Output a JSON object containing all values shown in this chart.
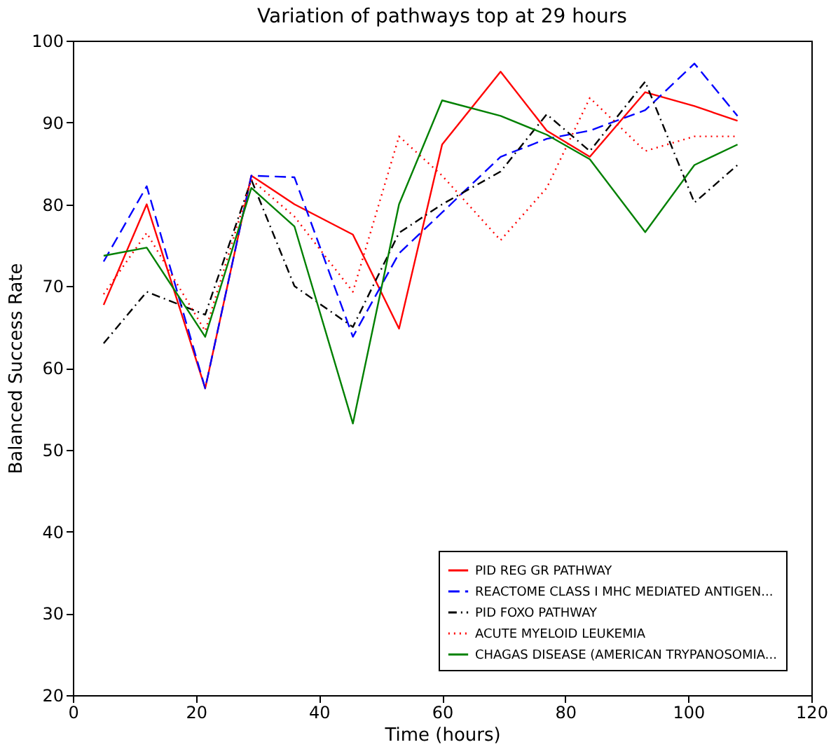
{
  "chart_data": {
    "type": "line",
    "title": "Variation of pathways top at 29 hours",
    "xlabel": "Time (hours)",
    "ylabel": "Balanced Success Rate",
    "x": [
      5,
      12,
      21.5,
      29,
      36,
      45.5,
      53,
      60,
      69.5,
      77,
      84,
      93,
      101,
      108
    ],
    "series": [
      {
        "name": "PID REG GR PATHWAY",
        "color": "#ff0000",
        "line_style": "solid",
        "values": [
          67.7,
          80,
          57.5,
          83.5,
          80,
          76.3,
          64.8,
          87.3,
          96.2,
          89,
          85.8,
          93.7,
          92,
          90.2
        ]
      },
      {
        "name": "REACTOME CLASS I MHC MEDIATED ANTIGEN...",
        "color": "#0000ff",
        "line_style": "dashed",
        "values": [
          73,
          82.2,
          57.5,
          83.5,
          83.3,
          63.8,
          74,
          79,
          85.8,
          88,
          89,
          91.5,
          97.2,
          90.8
        ]
      },
      {
        "name": "PID FOXO PATHWAY",
        "color": "#000000",
        "line_style": "dashdot",
        "values": [
          63,
          69.3,
          66.5,
          83,
          70,
          65,
          76.5,
          80,
          84,
          91,
          86.5,
          95,
          80.2,
          84.8
        ]
      },
      {
        "name": "ACUTE MYELOID LEUKEMIA",
        "color": "#ff0000",
        "line_style": "dotted",
        "values": [
          69,
          76.5,
          64.5,
          83,
          78.5,
          69.3,
          88.3,
          83.5,
          75.6,
          82,
          93,
          86.5,
          88.3,
          88.3
        ]
      },
      {
        "name": "CHAGAS DISEASE (AMERICAN TRYPANOSOMIA...",
        "color": "#008000",
        "line_style": "solid",
        "values": [
          73.7,
          74.7,
          63.8,
          82,
          77.3,
          53.2,
          80,
          92.7,
          90.8,
          88.5,
          85.5,
          76.6,
          84.8,
          87.3
        ]
      }
    ],
    "xlim": [
      0,
      120
    ],
    "xticks": [
      0,
      20,
      40,
      60,
      80,
      100,
      120
    ],
    "ylim": [
      20,
      100
    ],
    "yticks": [
      20,
      30,
      40,
      50,
      60,
      70,
      80,
      90,
      100
    ],
    "grid": false,
    "legend": "bottom right",
    "marker": "none"
  }
}
